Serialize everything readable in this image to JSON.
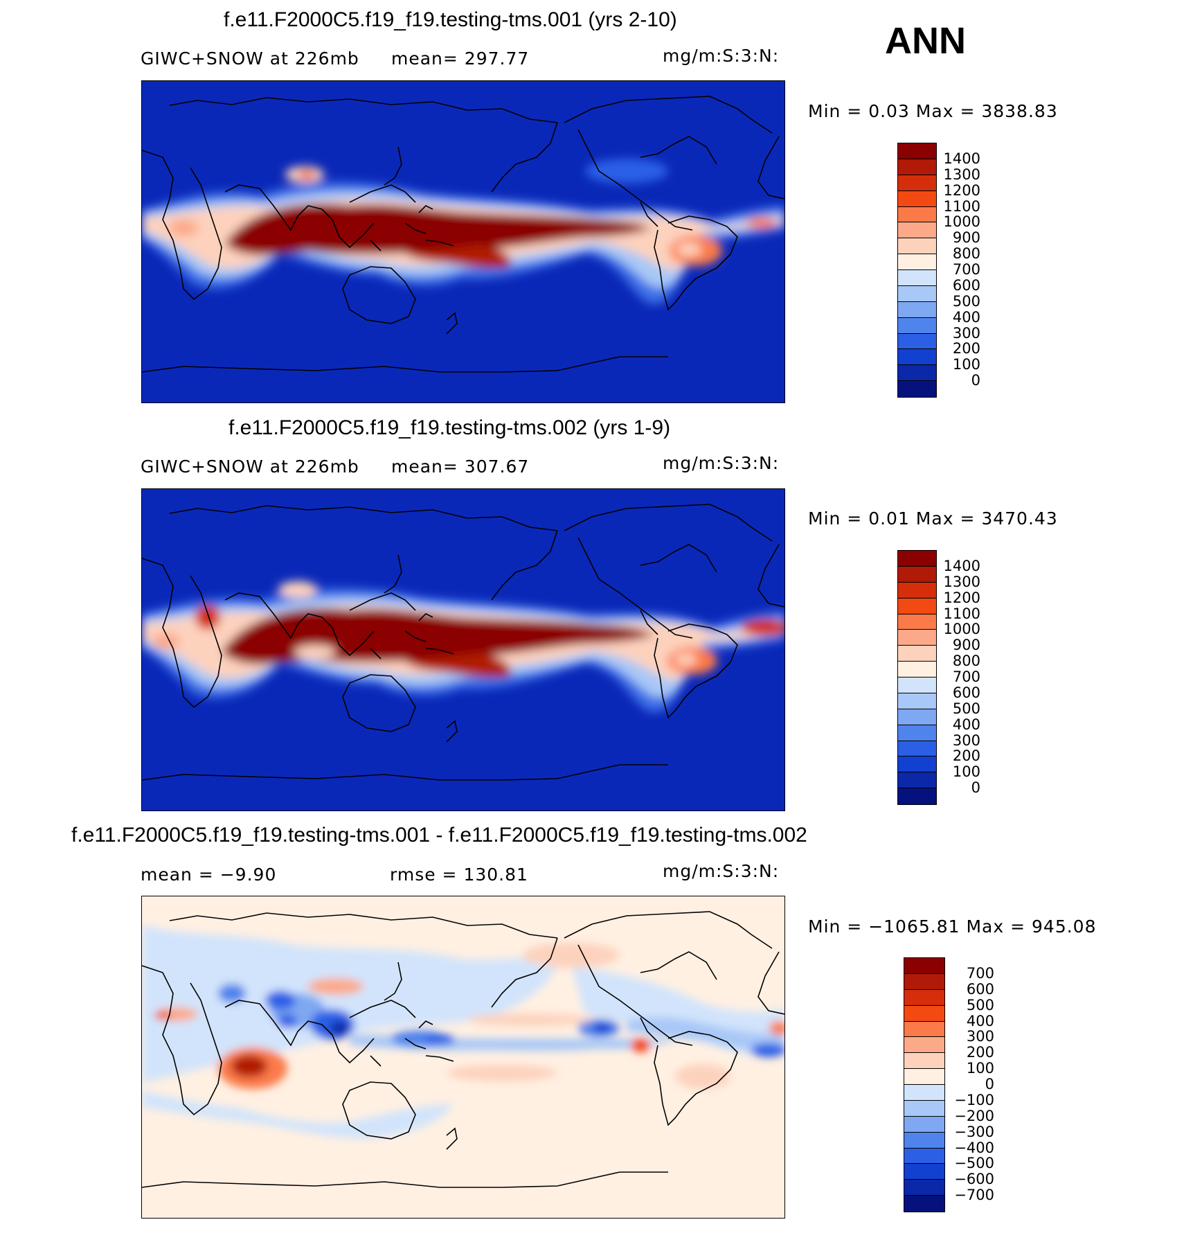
{
  "season": "ANN",
  "panels": [
    {
      "title": "f.e11.F2000C5.f19_f19.testing-tms.001 (yrs 2-10)",
      "left_label": "GIWC+SNOW at 226mb",
      "mid_label": "mean= 297.77",
      "units": "mg/m:S:3:N:",
      "minmax": "Min =    0.03 Max = 3838.83",
      "colorbar_labels": [
        "1400",
        "1300",
        "1200",
        "1100",
        "1000",
        "900",
        "800",
        "700",
        "600",
        "500",
        "400",
        "300",
        "200",
        "100",
        "0"
      ],
      "colorbar_colors": [
        "#8b0000",
        "#b01a06",
        "#d42e0a",
        "#f24a12",
        "#fb7a4a",
        "#fca98a",
        "#fdd2bd",
        "#fff0e2",
        "#d2e4fb",
        "#a8c8f7",
        "#7fa8f2",
        "#4f84ec",
        "#2b60e6",
        "#1240d0",
        "#0a28a8",
        "#05127e"
      ]
    },
    {
      "title": "f.e11.F2000C5.f19_f19.testing-tms.002 (yrs 1-9)",
      "left_label": "GIWC+SNOW at 226mb",
      "mid_label": "mean= 307.67",
      "units": "mg/m:S:3:N:",
      "minmax": "Min =    0.01 Max = 3470.43",
      "colorbar_labels": [
        "1400",
        "1300",
        "1200",
        "1100",
        "1000",
        "900",
        "800",
        "700",
        "600",
        "500",
        "400",
        "300",
        "200",
        "100",
        "0"
      ],
      "colorbar_colors": [
        "#8b0000",
        "#b01a06",
        "#d42e0a",
        "#f24a12",
        "#fb7a4a",
        "#fca98a",
        "#fdd2bd",
        "#fff0e2",
        "#d2e4fb",
        "#a8c8f7",
        "#7fa8f2",
        "#4f84ec",
        "#2b60e6",
        "#1240d0",
        "#0a28a8",
        "#05127e"
      ]
    },
    {
      "title": "f.e11.F2000C5.f19_f19.testing-tms.001 - f.e11.F2000C5.f19_f19.testing-tms.002",
      "left_label": "mean =   −9.90",
      "mid_label": "rmse = 130.81",
      "units": "mg/m:S:3:N:",
      "minmax": "Min = −1065.81 Max = 945.08",
      "colorbar_labels": [
        "700",
        "600",
        "500",
        "400",
        "300",
        "200",
        "100",
        "0",
        "−100",
        "−200",
        "−300",
        "−400",
        "−500",
        "−600",
        "−700"
      ],
      "colorbar_colors": [
        "#8b0000",
        "#b01a06",
        "#d42e0a",
        "#f24a12",
        "#fb7a4a",
        "#fca98a",
        "#fdd2bd",
        "#fff0e2",
        "#d2e4fb",
        "#a8c8f7",
        "#7fa8f2",
        "#4f84ec",
        "#2b60e6",
        "#1240d0",
        "#0a28a8",
        "#05127e"
      ]
    }
  ]
}
